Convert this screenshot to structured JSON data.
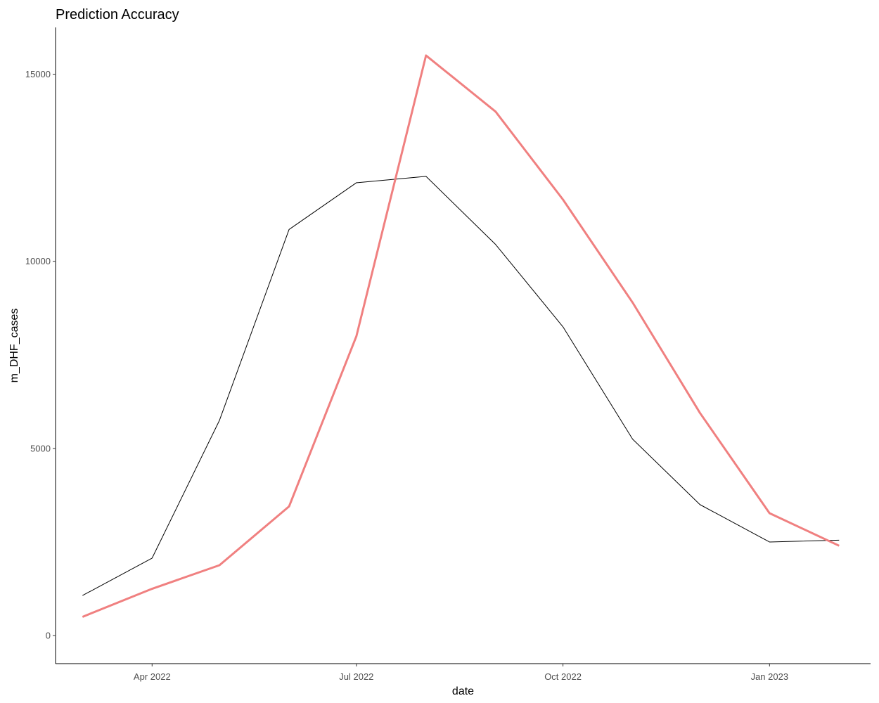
{
  "chart_data": {
    "type": "line",
    "title": "Prediction Accuracy",
    "xlabel": "date",
    "ylabel": "m_DHF_cases",
    "x": [
      "2022-03-01",
      "2022-04-01",
      "2022-05-01",
      "2022-06-01",
      "2022-07-01",
      "2022-08-01",
      "2022-09-01",
      "2022-10-01",
      "2022-11-01",
      "2022-12-01",
      "2023-01-01",
      "2023-02-01"
    ],
    "xlim": [
      "2022-02-17",
      "2023-02-15"
    ],
    "xticks": [
      {
        "date": "2022-04-01",
        "label": "Apr 2022"
      },
      {
        "date": "2022-07-01",
        "label": "Jul 2022"
      },
      {
        "date": "2022-10-01",
        "label": "Oct 2022"
      },
      {
        "date": "2023-01-01",
        "label": "Jan 2023"
      }
    ],
    "ylim": [
      -750,
      16250
    ],
    "yticks": [
      {
        "value": 0,
        "label": "0"
      },
      {
        "value": 5000,
        "label": "5000"
      },
      {
        "value": 10000,
        "label": "10000"
      },
      {
        "value": 15000,
        "label": "15000"
      }
    ],
    "grid": false,
    "legend": "none",
    "series": [
      {
        "values": [
          1070,
          2070,
          5750,
          10850,
          12100,
          12270,
          10450,
          8250,
          5250,
          3500,
          2500,
          2550
        ],
        "color": "#000000"
      },
      {
        "values": [
          500,
          1250,
          1880,
          3450,
          8000,
          15500,
          14000,
          11650,
          8900,
          5950,
          3270,
          2400
        ],
        "color": "#F08080"
      }
    ]
  }
}
